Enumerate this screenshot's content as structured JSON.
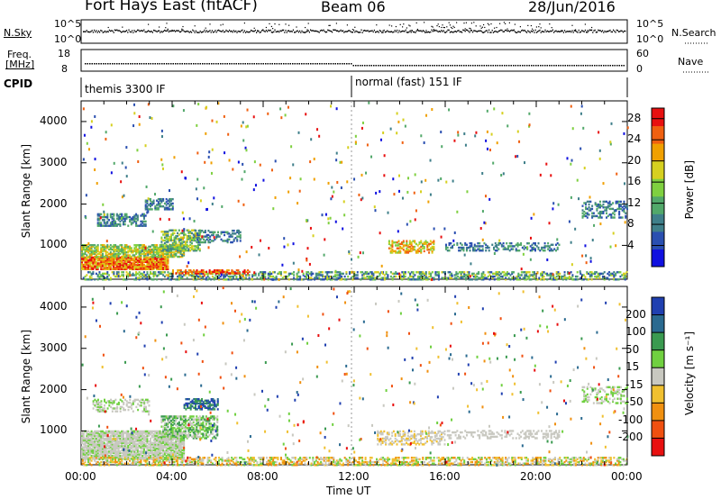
{
  "header": {
    "station": "Fort Hays East (fitACF)",
    "beam": "Beam 06",
    "date": "28/Jun/2016"
  },
  "strip": {
    "nsky_label": "N.Sky",
    "nsky_ticks": [
      "10^5",
      "10^0"
    ],
    "nsearch_label": "N.Search",
    "nsearch_ticks": [
      "10^5",
      "10^0"
    ],
    "freq_label": "Freq.",
    "freq_unit": "[MHz]",
    "freq_ticks": [
      "18",
      "8"
    ],
    "nave_label": "Nave",
    "nave_ticks": [
      "60",
      "0"
    ],
    "cpid_label": "CPID",
    "cpid_1": "themis 3300 IF",
    "cpid_2": "normal (fast) 151 IF"
  },
  "chart_data": [
    {
      "type": "heatmap",
      "name": "power",
      "xlabel": "Time UT",
      "ylabel": "Slant Range [km]",
      "y_ticks": [
        1000,
        2000,
        3000,
        4000
      ],
      "ylim": [
        180,
        4500
      ],
      "colorbar_label": "Power [dB]",
      "colorbar_ticks": [
        4,
        8,
        12,
        16,
        20,
        24,
        28
      ],
      "colorbar_range": [
        0,
        30
      ],
      "colors": [
        "#1010e0",
        "#2a4fb0",
        "#3f7f8a",
        "#52a86a",
        "#7fd040",
        "#d6d020",
        "#f0a000",
        "#f06010",
        "#e81010"
      ]
    },
    {
      "type": "heatmap",
      "name": "velocity",
      "xlabel": "Time UT",
      "ylabel": "Slant Range [km]",
      "y_ticks": [
        1000,
        2000,
        3000,
        4000
      ],
      "ylim": [
        180,
        4500
      ],
      "colorbar_label": "Velocity [m s⁻¹]",
      "colorbar_ticks": [
        "200",
        "100",
        "50",
        "15",
        "-15",
        "-50",
        "-100",
        "-200"
      ],
      "colors": [
        "#2040b0",
        "#2a6a90",
        "#3a9a50",
        "#70d040",
        "#c8c8c0",
        "#f0c030",
        "#f09010",
        "#f05010",
        "#e81010"
      ]
    }
  ],
  "x_axis": {
    "label": "Time UT",
    "ticks": [
      "00:00",
      "04:00",
      "08:00",
      "12:00",
      "16:00",
      "20:00",
      "00:00"
    ]
  }
}
